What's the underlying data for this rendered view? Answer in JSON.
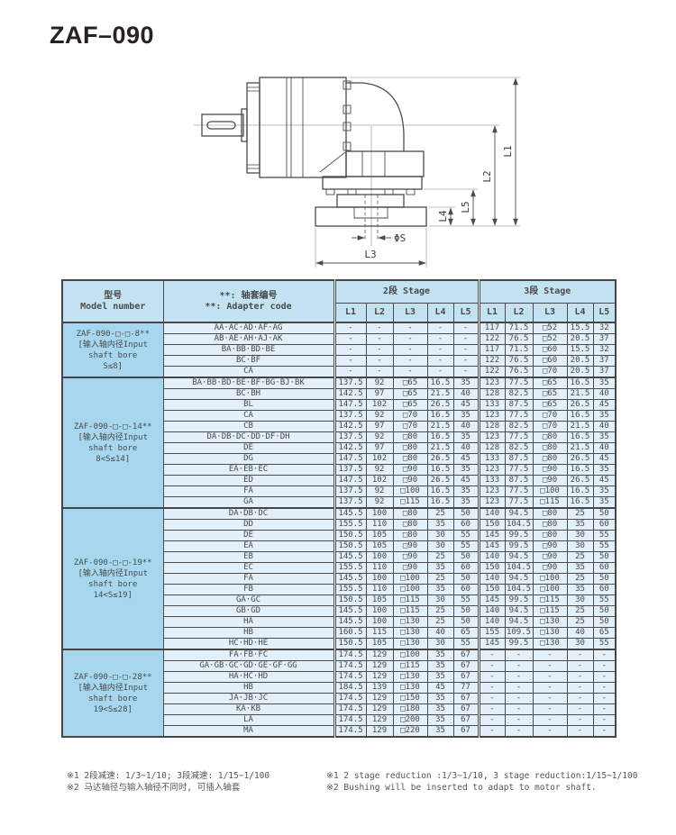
{
  "page": {
    "title": "ZAF–090"
  },
  "drawing": {
    "labels": {
      "l1": "L1",
      "l2": "L2",
      "l3": "L3",
      "l4": "L4",
      "l5": "L5",
      "phi_s": "ΦS"
    }
  },
  "table": {
    "headers": {
      "model_zh": "型号",
      "model_en": "Model number",
      "adapter_zh": "**: 轴套编号",
      "adapter_en": "**: Adapter code",
      "stage2": "2段 Stage",
      "stage3": "3段 Stage",
      "cols": [
        "L1",
        "L2",
        "L3",
        "L4",
        "L5"
      ]
    },
    "groups": [
      {
        "model_lines": [
          "ZAF-090-□-□-8**",
          "[输入轴内径Input",
          "shaft bore",
          "S≤8]"
        ],
        "rows": [
          {
            "code": "AA·AC·AD·AF·AG",
            "s2": [
              "-",
              "-",
              "-",
              "-",
              "-"
            ],
            "s3": [
              "117",
              "71.5",
              "□52",
              "15.5",
              "32"
            ]
          },
          {
            "code": "AB·AE·AH·AJ·AK",
            "s2": [
              "-",
              "-",
              "-",
              "-",
              "-"
            ],
            "s3": [
              "122",
              "76.5",
              "□52",
              "20.5",
              "37"
            ]
          },
          {
            "code": "BA·BB·BD·BE",
            "s2": [
              "-",
              "-",
              "-",
              "-",
              "-"
            ],
            "s3": [
              "117",
              "71.5",
              "□60",
              "15.5",
              "32"
            ]
          },
          {
            "code": "BC·BF",
            "s2": [
              "-",
              "-",
              "-",
              "-",
              "-"
            ],
            "s3": [
              "122",
              "76.5",
              "□60",
              "20.5",
              "37"
            ]
          },
          {
            "code": "CA",
            "s2": [
              "-",
              "-",
              "-",
              "-",
              "-"
            ],
            "s3": [
              "122",
              "76.5",
              "□70",
              "20.5",
              "37"
            ]
          }
        ]
      },
      {
        "model_lines": [
          "ZAF-090-□-□-14**",
          "[输入轴内径Input",
          "shaft bore",
          "8<S≤14]"
        ],
        "rows": [
          {
            "code": "BA·BB·BD·BE·BF·BG·BJ·BK",
            "s2": [
              "137.5",
              "92",
              "□65",
              "16.5",
              "35"
            ],
            "s3": [
              "123",
              "77.5",
              "□65",
              "16.5",
              "35"
            ]
          },
          {
            "code": "BC·BH",
            "s2": [
              "142.5",
              "97",
              "□65",
              "21.5",
              "40"
            ],
            "s3": [
              "128",
              "82.5",
              "□65",
              "21.5",
              "40"
            ]
          },
          {
            "code": "BL",
            "s2": [
              "147.5",
              "102",
              "□65",
              "26.5",
              "45"
            ],
            "s3": [
              "133",
              "87.5",
              "□65",
              "26.5",
              "45"
            ]
          },
          {
            "code": "CA",
            "s2": [
              "137.5",
              "92",
              "□70",
              "16.5",
              "35"
            ],
            "s3": [
              "123",
              "77.5",
              "□70",
              "16.5",
              "35"
            ]
          },
          {
            "code": "CB",
            "s2": [
              "142.5",
              "97",
              "□70",
              "21.5",
              "40"
            ],
            "s3": [
              "128",
              "82.5",
              "□70",
              "21.5",
              "40"
            ]
          },
          {
            "code": "DA·DB·DC·DD·DF·DH",
            "s2": [
              "137.5",
              "92",
              "□80",
              "16.5",
              "35"
            ],
            "s3": [
              "123",
              "77.5",
              "□80",
              "16.5",
              "35"
            ]
          },
          {
            "code": "DE",
            "s2": [
              "142.5",
              "97",
              "□80",
              "21.5",
              "40"
            ],
            "s3": [
              "128",
              "82.5",
              "□80",
              "21.5",
              "40"
            ]
          },
          {
            "code": "DG",
            "s2": [
              "147.5",
              "102",
              "□80",
              "26.5",
              "45"
            ],
            "s3": [
              "133",
              "87.5",
              "□80",
              "26.5",
              "45"
            ]
          },
          {
            "code": "EA·EB·EC",
            "s2": [
              "137.5",
              "92",
              "□90",
              "16.5",
              "35"
            ],
            "s3": [
              "123",
              "77.5",
              "□90",
              "16.5",
              "35"
            ]
          },
          {
            "code": "ED",
            "s2": [
              "147.5",
              "102",
              "□90",
              "26.5",
              "45"
            ],
            "s3": [
              "133",
              "87.5",
              "□90",
              "26.5",
              "45"
            ]
          },
          {
            "code": "FA",
            "s2": [
              "137.5",
              "92",
              "□100",
              "16.5",
              "35"
            ],
            "s3": [
              "123",
              "77.5",
              "□100",
              "16.5",
              "35"
            ]
          },
          {
            "code": "GA",
            "s2": [
              "137.5",
              "92",
              "□115",
              "16.5",
              "35"
            ],
            "s3": [
              "123",
              "77.5",
              "□115",
              "16.5",
              "35"
            ]
          }
        ]
      },
      {
        "model_lines": [
          "ZAF-090-□-□-19**",
          "[输入轴内径Input",
          "shaft bore",
          "14<S≤19]"
        ],
        "rows": [
          {
            "code": "DA·DB·DC",
            "s2": [
              "145.5",
              "100",
              "□80",
              "25",
              "50"
            ],
            "s3": [
              "140",
              "94.5",
              "□80",
              "25",
              "50"
            ]
          },
          {
            "code": "DD",
            "s2": [
              "155.5",
              "110",
              "□80",
              "35",
              "60"
            ],
            "s3": [
              "150",
              "104.5",
              "□80",
              "35",
              "60"
            ]
          },
          {
            "code": "DE",
            "s2": [
              "150.5",
              "105",
              "□80",
              "30",
              "55"
            ],
            "s3": [
              "145",
              "99.5",
              "□80",
              "30",
              "55"
            ]
          },
          {
            "code": "EA",
            "s2": [
              "150.5",
              "105",
              "□90",
              "30",
              "55"
            ],
            "s3": [
              "145",
              "99.5",
              "□90",
              "30",
              "55"
            ]
          },
          {
            "code": "EB",
            "s2": [
              "145.5",
              "100",
              "□90",
              "25",
              "50"
            ],
            "s3": [
              "140",
              "94.5",
              "□90",
              "25",
              "50"
            ]
          },
          {
            "code": "EC",
            "s2": [
              "155.5",
              "110",
              "□90",
              "35",
              "60"
            ],
            "s3": [
              "150",
              "104.5",
              "□90",
              "35",
              "60"
            ]
          },
          {
            "code": "FA",
            "s2": [
              "145.5",
              "100",
              "□100",
              "25",
              "50"
            ],
            "s3": [
              "140",
              "94.5",
              "□100",
              "25",
              "50"
            ]
          },
          {
            "code": "FB",
            "s2": [
              "155.5",
              "110",
              "□100",
              "35",
              "60"
            ],
            "s3": [
              "150",
              "104.5",
              "□100",
              "35",
              "60"
            ]
          },
          {
            "code": "GA·GC",
            "s2": [
              "150.5",
              "105",
              "□115",
              "30",
              "55"
            ],
            "s3": [
              "145",
              "99.5",
              "□115",
              "30",
              "55"
            ]
          },
          {
            "code": "GB·GD",
            "s2": [
              "145.5",
              "100",
              "□115",
              "25",
              "50"
            ],
            "s3": [
              "140",
              "94.5",
              "□115",
              "25",
              "50"
            ]
          },
          {
            "code": "HA",
            "s2": [
              "145.5",
              "100",
              "□130",
              "25",
              "50"
            ],
            "s3": [
              "140",
              "94.5",
              "□130",
              "25",
              "50"
            ]
          },
          {
            "code": "HB",
            "s2": [
              "160.5",
              "115",
              "□130",
              "40",
              "65"
            ],
            "s3": [
              "155",
              "109.5",
              "□130",
              "40",
              "65"
            ]
          },
          {
            "code": "HC·HD·HE",
            "s2": [
              "150.5",
              "105",
              "□130",
              "30",
              "55"
            ],
            "s3": [
              "145",
              "99.5",
              "□130",
              "30",
              "55"
            ]
          }
        ]
      },
      {
        "model_lines": [
          "ZAF-090-□-□-28**",
          "[输入轴内径Input",
          "shaft bore",
          "19<S≤28]"
        ],
        "rows": [
          {
            "code": "FA·FB·FC",
            "s2": [
              "174.5",
              "129",
              "□100",
              "35",
              "67"
            ],
            "s3": [
              "-",
              "-",
              "-",
              "-",
              "-"
            ]
          },
          {
            "code": "GA·GB·GC·GD·GE·GF·GG",
            "s2": [
              "174.5",
              "129",
              "□115",
              "35",
              "67"
            ],
            "s3": [
              "-",
              "-",
              "-",
              "-",
              "-"
            ]
          },
          {
            "code": "HA·HC·HD",
            "s2": [
              "174.5",
              "129",
              "□130",
              "35",
              "67"
            ],
            "s3": [
              "-",
              "-",
              "-",
              "-",
              "-"
            ]
          },
          {
            "code": "HB",
            "s2": [
              "184.5",
              "139",
              "□130",
              "45",
              "77"
            ],
            "s3": [
              "-",
              "-",
              "-",
              "-",
              "-"
            ]
          },
          {
            "code": "JA·JB·JC",
            "s2": [
              "174.5",
              "129",
              "□150",
              "35",
              "67"
            ],
            "s3": [
              "-",
              "-",
              "-",
              "-",
              "-"
            ]
          },
          {
            "code": "KA·KB",
            "s2": [
              "174.5",
              "129",
              "□180",
              "35",
              "67"
            ],
            "s3": [
              "-",
              "-",
              "-",
              "-",
              "-"
            ]
          },
          {
            "code": "LA",
            "s2": [
              "174.5",
              "129",
              "□200",
              "35",
              "67"
            ],
            "s3": [
              "-",
              "-",
              "-",
              "-",
              "-"
            ]
          },
          {
            "code": "MA",
            "s2": [
              "174.5",
              "129",
              "□220",
              "35",
              "67"
            ],
            "s3": [
              "-",
              "-",
              "-",
              "-",
              "-"
            ]
          }
        ]
      }
    ]
  },
  "footnotes": {
    "zh": "※1 2段减速: 1/3~1/10; 3段减速: 1/15~1/100\n※2 马达轴径与输入轴径不同时, 可插入轴套",
    "en": "※1 2 stage reduction :1/3~1/10, 3 stage reduction:1/15~1/100\n※2 Bushing will be inserted to adapt to motor shaft."
  },
  "colors": {
    "header_bg": "#c3e3f3",
    "model_bg": "#a6d7ef",
    "row_bg": "#e3f0f9",
    "line": "#4c4c4c"
  }
}
